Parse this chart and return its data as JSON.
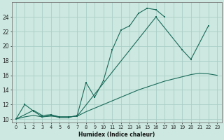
{
  "line1_x": [
    0,
    1,
    2,
    3,
    4,
    5,
    6,
    7,
    8,
    9,
    10,
    11,
    12,
    13,
    14,
    15,
    16,
    17
  ],
  "line1_y": [
    10,
    12,
    11.1,
    10.3,
    10.5,
    10.2,
    10.2,
    10.5,
    15.0,
    13.0,
    15.3,
    19.5,
    22.2,
    22.8,
    24.5,
    25.2,
    25.0,
    24.0
  ],
  "line2_x": [
    0,
    2,
    3,
    4,
    5,
    6,
    7,
    16,
    19,
    20,
    22
  ],
  "line2_y": [
    10,
    11.2,
    10.5,
    10.6,
    10.3,
    10.3,
    10.4,
    24.0,
    19.5,
    18.2,
    22.8
  ],
  "line3_x": [
    0,
    1,
    2,
    3,
    4,
    5,
    6,
    7,
    8,
    9,
    10,
    11,
    12,
    13,
    14,
    15,
    16,
    17,
    18,
    19,
    20,
    21,
    22,
    23
  ],
  "line3_y": [
    10,
    10.3,
    10.5,
    10.3,
    10.4,
    10.3,
    10.3,
    10.4,
    11.0,
    11.5,
    12.0,
    12.5,
    13.0,
    13.5,
    14.0,
    14.4,
    14.8,
    15.2,
    15.5,
    15.8,
    16.1,
    16.3,
    16.2,
    16.0
  ],
  "bg_color": "#cce8e0",
  "grid_color": "#aacec6",
  "line_color": "#1a6b5a",
  "xlabel": "Humidex (Indice chaleur)",
  "ylim": [
    9.5,
    26.0
  ],
  "xlim": [
    -0.5,
    23.5
  ],
  "yticks": [
    10,
    12,
    14,
    16,
    18,
    20,
    22,
    24
  ],
  "xticks": [
    0,
    1,
    2,
    3,
    4,
    5,
    6,
    7,
    8,
    9,
    10,
    11,
    12,
    13,
    14,
    15,
    16,
    17,
    18,
    19,
    20,
    21,
    22,
    23
  ],
  "xlabel_fontsize": 5.5,
  "tick_fontsize": 4.8,
  "ytick_fontsize": 5.5
}
